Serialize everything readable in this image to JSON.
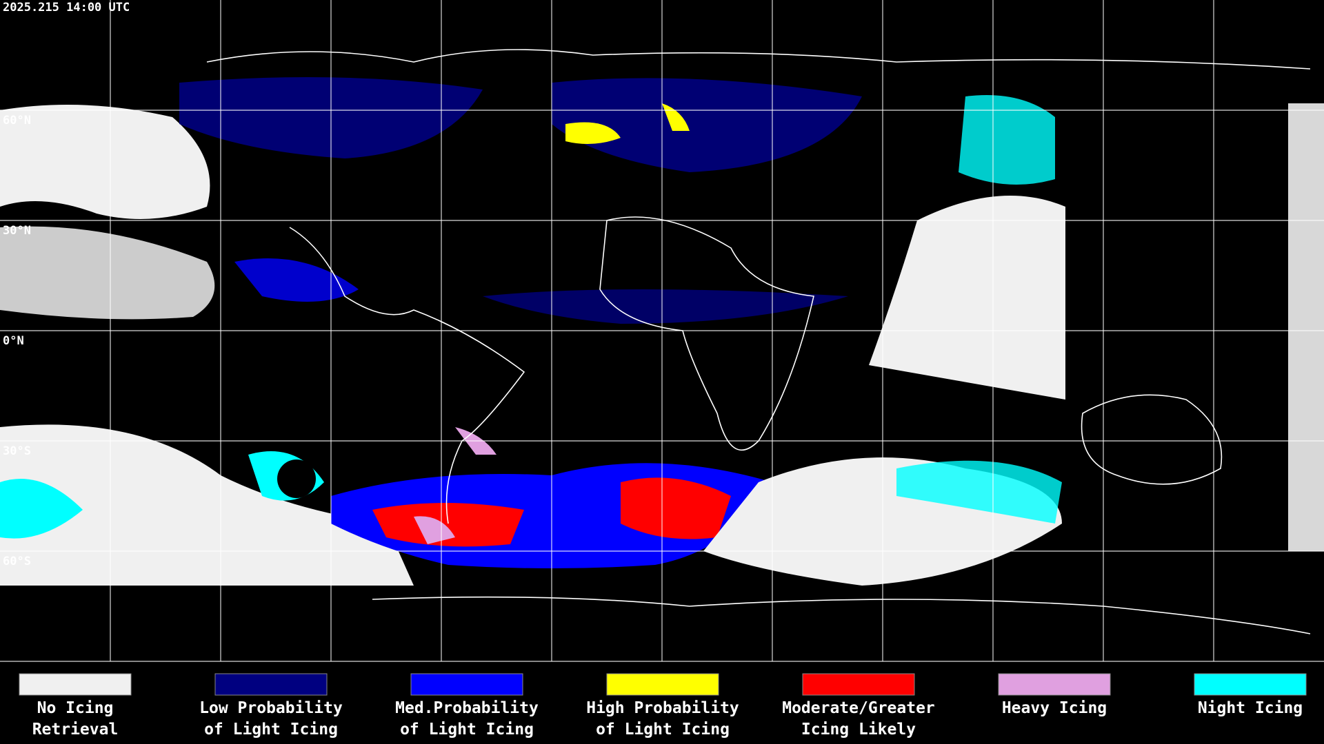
{
  "timestamp": "2025.215 14:00 UTC",
  "latitude_labels": [
    "60°N",
    "30°N",
    "0°N",
    "30°S",
    "60°S"
  ],
  "legend": [
    {
      "label": [
        "No Icing",
        "Retrieval"
      ],
      "color": "#f0f0f0"
    },
    {
      "label": [
        "Low Probability",
        "of Light Icing"
      ],
      "color": "#000080"
    },
    {
      "label": [
        "Med.Probability",
        "of Light Icing"
      ],
      "color": "#0000ff"
    },
    {
      "label": [
        "High Probability",
        "of Light Icing"
      ],
      "color": "#ffff00"
    },
    {
      "label": [
        "Moderate/Greater",
        "Icing Likely"
      ],
      "color": "#ff0000"
    },
    {
      "label": [
        "Heavy Icing"
      ],
      "color": "#e0a0e0"
    },
    {
      "label": [
        "Night Icing"
      ],
      "color": "#00ffff"
    }
  ]
}
